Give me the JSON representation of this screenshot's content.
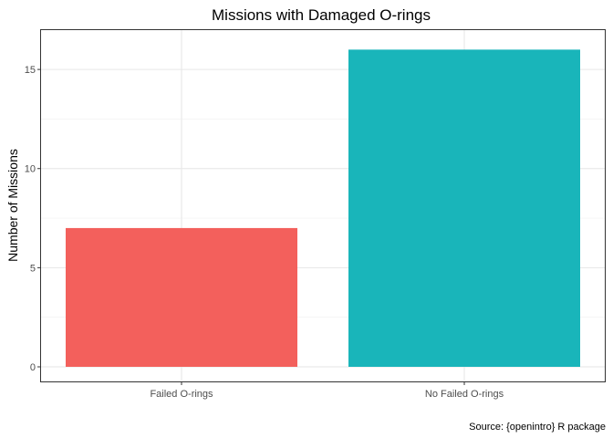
{
  "chart_data": {
    "type": "bar",
    "title": "Missions with Damaged O-rings",
    "xlabel": "",
    "ylabel": "Number of Missions",
    "categories": [
      "Failed O-rings",
      "No Failed O-rings"
    ],
    "values": [
      7,
      16
    ],
    "colors": [
      "#F8766D",
      "#00BFC4"
    ],
    "bar_colors_rendered": [
      "#f3605c",
      "#19b5ba"
    ],
    "ylim": [
      0,
      16.8
    ],
    "yticks": [
      0,
      5,
      10,
      15
    ],
    "grid": true,
    "legend": "none",
    "caption": "Source: {openintro} R package"
  }
}
